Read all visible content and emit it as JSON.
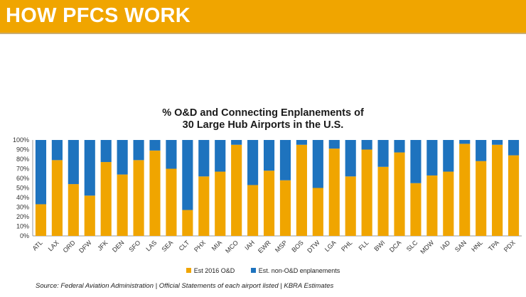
{
  "header": {
    "title": "HOW PFCS WORK"
  },
  "colors": {
    "banner": "#f0a500",
    "od": "#f0a500",
    "connecting": "#1e73be"
  },
  "chart_data": {
    "type": "bar",
    "stacked": true,
    "title_line1": "% O&D and Connecting Enplanements of",
    "title_line2": "30 Large Hub Airports in the U.S.",
    "categories": [
      "ATL",
      "LAX",
      "ORD",
      "DFW",
      "JFK",
      "DEN",
      "SFO",
      "LAS",
      "SEA",
      "CLT",
      "PHX",
      "MIA",
      "MCO",
      "IAH",
      "EWR",
      "MSP",
      "BOS",
      "DTW",
      "LGA",
      "PHL",
      "FLL",
      "BWI",
      "DCA",
      "SLC",
      "MDW",
      "IAD",
      "SAN",
      "HNL",
      "TPA",
      "PDX"
    ],
    "series": [
      {
        "name": "Est 2016 O&D",
        "values": [
          33,
          79,
          54,
          42,
          77,
          64,
          79,
          89,
          70,
          27,
          62,
          67,
          95,
          53,
          68,
          58,
          95,
          50,
          91,
          62,
          90,
          72,
          87,
          55,
          63,
          67,
          96,
          78,
          95,
          84
        ]
      },
      {
        "name": "Est. non-O&D enplanements",
        "values": [
          67,
          21,
          46,
          58,
          23,
          36,
          21,
          11,
          30,
          73,
          38,
          33,
          5,
          47,
          32,
          42,
          5,
          50,
          9,
          38,
          10,
          28,
          13,
          45,
          37,
          33,
          4,
          22,
          5,
          16
        ]
      }
    ],
    "y_ticks": [
      "0%",
      "10%",
      "20%",
      "30%",
      "40%",
      "50%",
      "60%",
      "70%",
      "80%",
      "90%",
      "100%"
    ],
    "ylim": [
      0,
      100
    ],
    "legend": [
      "Est 2016 O&D",
      "Est. non-O&D enplanements"
    ],
    "legend_position": "bottom"
  },
  "source": "Source: Federal Aviation Administration | Official Statements of each airport listed | KBRA Estimates"
}
